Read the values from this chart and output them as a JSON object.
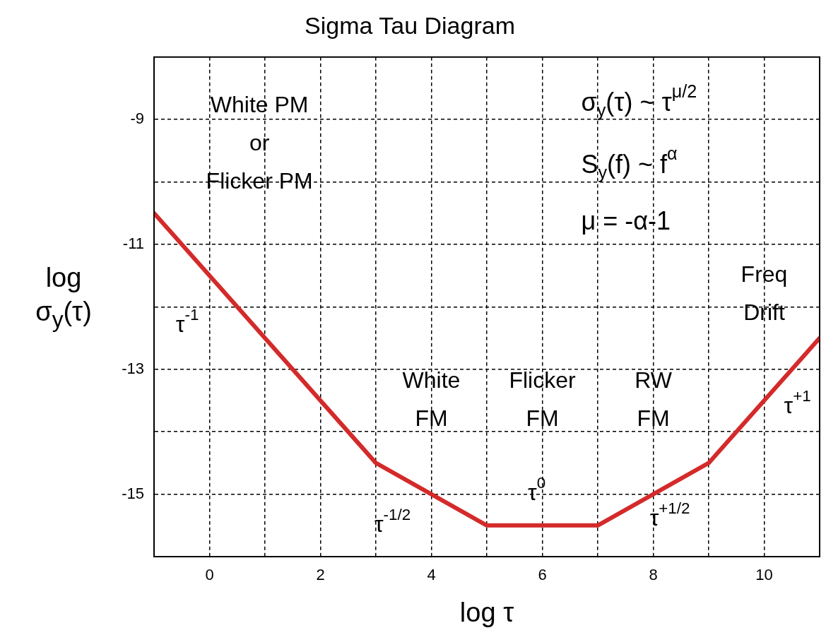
{
  "chart_data": {
    "type": "line",
    "title": "Sigma Tau Diagram",
    "xlabel": "log τ",
    "ylabel": "log σ$_{y}$(τ)",
    "x": [
      -1,
      3,
      5,
      7,
      9,
      11
    ],
    "series": [
      {
        "color": "#d42a2a",
        "values": [
          -10.5,
          -14.5,
          -15.5,
          -15.5,
          -14.5,
          -12.5
        ]
      }
    ],
    "xlim": [
      -1,
      11
    ],
    "xticks": [
      0,
      {
        "value": 1,
        "label": null
      },
      2,
      {
        "value": 3,
        "label": null
      },
      4,
      {
        "value": 5,
        "label": null
      },
      6,
      {
        "value": 7,
        "label": null
      },
      8,
      {
        "value": 9,
        "label": null
      },
      10
    ],
    "ylim": [
      -16,
      -8
    ],
    "yticks": [
      {
        "value": -15,
        "label": "-15"
      },
      {
        "value": -14,
        "label": null
      },
      {
        "value": -13,
        "label": "-13"
      },
      {
        "value": -12,
        "label": null
      },
      {
        "value": -11,
        "label": "-11"
      },
      {
        "value": -10,
        "label": null
      },
      {
        "value": -9,
        "label": "-9"
      }
    ],
    "grid": true,
    "legend": false,
    "marker": "none",
    "line_style": "solid",
    "annotations": [
      "White PM\nor\nFlicker PM",
      "τ$^{-1}$",
      "White\nFM",
      "Flicker\nFM",
      "RW\nFM",
      "τ$^{-1/2}$",
      "τ$^{0}$",
      "τ$^{+1/2}$",
      "Freq\nDrift",
      "τ$^{+1}$",
      "σ$_{y}$(τ) ~ τ$^{μ/2}$",
      "S$_{y}$(f) ~ f$^{α}$",
      "μ = -α-1"
    ]
  }
}
